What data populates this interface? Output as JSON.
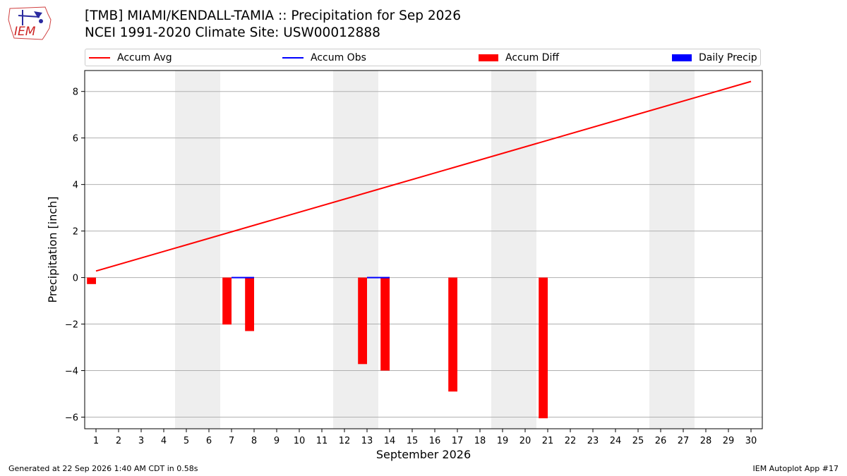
{
  "logo": {
    "text": "IEM"
  },
  "header": {
    "title_line1": "[TMB] MIAMI/KENDALL-TAMIA :: Precipitation for Sep 2026",
    "title_line2": "NCEI 1991-2020 Climate Site: USW00012888"
  },
  "legend": {
    "items": [
      {
        "label": "Accum Avg",
        "kind": "line",
        "color": "#ff0000"
      },
      {
        "label": "Accum Obs",
        "kind": "line",
        "color": "#0000ff"
      },
      {
        "label": "Accum Diff",
        "kind": "patch",
        "color": "#ff0000"
      },
      {
        "label": "Daily Precip",
        "kind": "patch",
        "color": "#0000ff"
      }
    ]
  },
  "footer": {
    "generated": "Generated at 22 Sep 2026 1:40 AM CDT in 0.58s",
    "app": "IEM Autoplot App #17"
  },
  "chart_data": {
    "type": "bar",
    "title": "[TMB] MIAMI/KENDALL-TAMIA :: Precipitation for Sep 2026",
    "xlabel": "September 2026",
    "ylabel": "Precipitation [inch]",
    "xlim": [
      0.5,
      30.5
    ],
    "ylim": [
      -6.5,
      8.9
    ],
    "x_ticks": [
      1,
      2,
      3,
      4,
      5,
      6,
      7,
      8,
      9,
      10,
      11,
      12,
      13,
      14,
      15,
      16,
      17,
      18,
      19,
      20,
      21,
      22,
      23,
      24,
      25,
      26,
      27,
      28,
      29,
      30
    ],
    "y_ticks": [
      -6,
      -4,
      -2,
      0,
      2,
      4,
      6,
      8
    ],
    "y_tick_labels": [
      "−6",
      "−4",
      "−2",
      "0",
      "2",
      "4",
      "6",
      "8"
    ],
    "grid": "horizontal",
    "weekend_shading": [
      [
        4.5,
        6.5
      ],
      [
        11.5,
        13.5
      ],
      [
        18.5,
        20.5
      ],
      [
        25.5,
        27.5
      ]
    ],
    "series": [
      {
        "name": "Accum Avg",
        "type": "line",
        "color": "#ff0000",
        "x": [
          1,
          30
        ],
        "values": [
          0.28,
          8.43
        ]
      },
      {
        "name": "Accum Obs",
        "type": "line",
        "color": "#0000ff",
        "dashed_segments": true,
        "x": [
          7,
          8,
          13,
          14
        ],
        "values": [
          0,
          0,
          0,
          0
        ]
      },
      {
        "name": "Accum Diff",
        "type": "bar",
        "color": "#ff0000",
        "x": [
          1,
          7,
          8,
          13,
          14,
          17,
          21
        ],
        "values": [
          -0.28,
          -2.02,
          -2.3,
          -3.72,
          -4.0,
          -4.9,
          -6.05
        ]
      },
      {
        "name": "Daily Precip",
        "type": "bar",
        "color": "#0000ff",
        "x": [],
        "values": []
      }
    ]
  }
}
